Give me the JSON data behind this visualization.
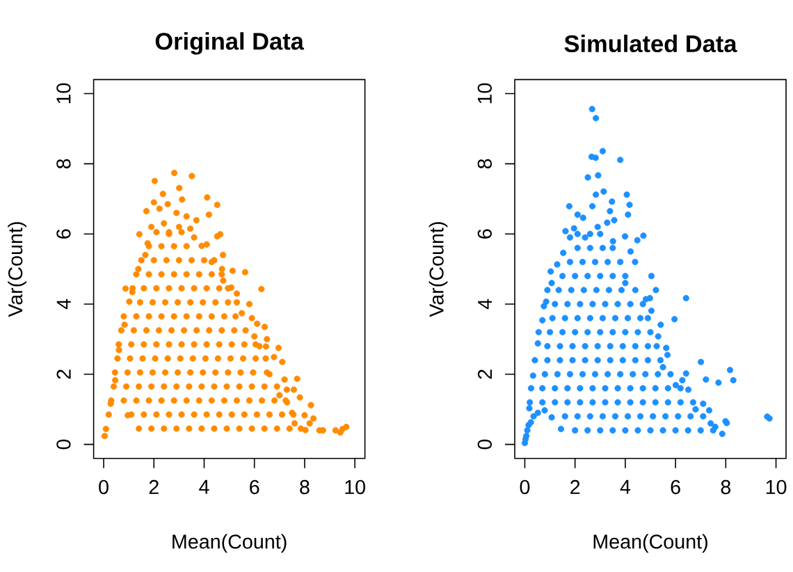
{
  "chart_data": [
    {
      "type": "scatter",
      "title": "Original Data",
      "xlabel": "Mean(Count)",
      "ylabel": "Var(Count)",
      "xlim": [
        -0.4,
        10.4
      ],
      "ylim": [
        -0.4,
        10.4
      ],
      "xticks": [
        0,
        2,
        4,
        6,
        8,
        10
      ],
      "yticks": [
        0,
        2,
        4,
        6,
        8,
        10
      ],
      "color": "#ff8c00",
      "marker": "circle",
      "x": [
        0.04,
        0.09,
        0.2,
        0.28,
        0.46,
        0.61,
        0.83,
        1.02,
        0.87,
        1.14,
        1.38,
        1.42,
        1.66,
        1.75,
        1.7,
        2.03,
        2.36,
        2.22,
        2.81,
        3.01,
        3.51,
        3.12,
        4.12,
        4.52,
        4.19,
        3.69,
        3.45,
        4.52,
        4.64,
        3.9,
        4.75,
        5.13,
        5.63,
        6.28,
        4.71,
        4.76,
        5.08,
        5.5,
        6.11,
        6.41,
        6.0,
        6.46,
        6.96,
        6.78,
        7.11,
        7.7,
        7.2,
        7.29,
        7.57,
        7.81,
        8.25,
        8.0,
        8.35,
        8.03,
        8.59,
        8.73,
        9.23,
        9.42,
        9.66,
        9.51,
        0.96,
        2.55,
        2.9,
        3.3,
        2.0,
        1.9,
        2.4,
        3.0,
        2.6,
        3.6,
        4.1,
        4.3,
        5.3,
        5.8,
        5.9,
        6.5,
        6.2,
        6.6,
        7.0,
        7.3,
        7.5,
        7.6,
        8.2,
        1.4,
        1.9,
        2.4,
        2.9,
        3.4,
        3.9,
        4.4,
        4.9,
        5.4,
        5.9,
        6.4,
        6.9,
        7.4,
        7.85,
        1.1,
        1.6,
        2.1,
        2.6,
        3.1,
        3.6,
        4.1,
        4.6,
        5.1,
        5.6,
        6.1,
        6.6,
        7.1,
        7.55,
        0.3,
        0.8,
        1.3,
        1.8,
        2.3,
        2.8,
        3.3,
        3.8,
        4.3,
        4.8,
        5.3,
        5.8,
        6.3,
        6.8,
        7.25,
        0.4,
        0.9,
        1.4,
        1.9,
        2.4,
        2.9,
        3.4,
        3.9,
        4.4,
        4.9,
        5.4,
        5.9,
        6.4,
        6.9,
        0.45,
        0.95,
        1.45,
        1.95,
        2.45,
        2.95,
        3.45,
        3.95,
        4.45,
        4.95,
        5.45,
        5.95,
        6.5,
        0.55,
        1.05,
        1.55,
        2.05,
        2.55,
        3.05,
        3.55,
        4.05,
        4.55,
        5.05,
        5.55,
        6.05,
        6.45,
        0.6,
        1.1,
        1.6,
        2.1,
        2.6,
        3.1,
        3.6,
        4.1,
        4.6,
        5.1,
        5.6,
        6.05,
        0.7,
        1.2,
        1.7,
        2.2,
        2.7,
        3.2,
        3.7,
        4.2,
        4.7,
        5.2,
        5.65,
        0.8,
        1.3,
        1.8,
        2.3,
        2.8,
        3.3,
        3.8,
        4.3,
        4.8,
        5.25,
        1.45,
        1.95,
        2.45,
        2.95,
        3.45,
        3.95,
        4.45,
        4.95,
        5.3,
        1.15,
        1.6,
        2.1,
        2.6,
        3.1,
        3.6,
        4.1,
        4.6,
        4.95,
        1.3,
        1.8,
        2.3,
        2.8,
        3.3,
        3.8,
        4.3,
        4.7,
        1.5,
        2.0,
        2.5,
        3.0,
        3.5,
        4.0,
        4.4,
        1.8,
        2.3,
        2.8,
        3.3,
        2.1,
        2.6,
        3.1
      ],
      "values": [
        0.24,
        0.44,
        0.85,
        1.16,
        1.83,
        2.69,
        3.41,
        4.07,
        4.44,
        4.34,
        5.0,
        5.99,
        5.4,
        5.73,
        6.65,
        7.51,
        7.14,
        6.72,
        7.74,
        7.31,
        7.65,
        6.98,
        7.04,
        6.83,
        6.55,
        6.39,
        6.15,
        5.93,
        5.99,
        5.66,
        5.4,
        4.95,
        4.91,
        4.43,
        5.0,
        4.67,
        4.47,
        3.74,
        3.44,
        3.35,
        3.08,
        2.79,
        2.75,
        2.49,
        2.35,
        1.87,
        1.85,
        1.56,
        1.56,
        1.34,
        1.12,
        0.83,
        0.74,
        0.41,
        0.4,
        0.4,
        0.4,
        0.34,
        0.5,
        0.44,
        0.83,
        6.85,
        6.6,
        6.5,
        6.9,
        6.2,
        6.3,
        6.2,
        6.0,
        5.9,
        5.7,
        5.2,
        4.3,
        4.0,
        3.6,
        3.0,
        2.8,
        2.0,
        1.4,
        1.2,
        0.9,
        0.6,
        0.6,
        0.45,
        0.45,
        0.45,
        0.45,
        0.45,
        0.45,
        0.45,
        0.45,
        0.45,
        0.45,
        0.45,
        0.45,
        0.45,
        0.45,
        0.85,
        0.85,
        0.85,
        0.85,
        0.85,
        0.85,
        0.85,
        0.85,
        0.85,
        0.85,
        0.85,
        0.85,
        0.85,
        0.85,
        1.25,
        1.25,
        1.25,
        1.25,
        1.25,
        1.25,
        1.25,
        1.25,
        1.25,
        1.25,
        1.25,
        1.25,
        1.25,
        1.25,
        1.25,
        1.65,
        1.65,
        1.65,
        1.65,
        1.65,
        1.65,
        1.65,
        1.65,
        1.65,
        1.65,
        1.65,
        1.65,
        1.65,
        1.65,
        2.05,
        2.05,
        2.05,
        2.05,
        2.05,
        2.05,
        2.05,
        2.05,
        2.05,
        2.05,
        2.05,
        2.05,
        2.05,
        2.45,
        2.45,
        2.45,
        2.45,
        2.45,
        2.45,
        2.45,
        2.45,
        2.45,
        2.45,
        2.45,
        2.45,
        2.45,
        2.85,
        2.85,
        2.85,
        2.85,
        2.85,
        2.85,
        2.85,
        2.85,
        2.85,
        2.85,
        2.85,
        2.85,
        3.25,
        3.25,
        3.25,
        3.25,
        3.25,
        3.25,
        3.25,
        3.25,
        3.25,
        3.25,
        3.25,
        3.65,
        3.65,
        3.65,
        3.65,
        3.65,
        3.65,
        3.65,
        3.65,
        3.65,
        3.65,
        4.05,
        4.05,
        4.05,
        4.05,
        4.05,
        4.05,
        4.05,
        4.05,
        4.05,
        4.45,
        4.45,
        4.45,
        4.45,
        4.45,
        4.45,
        4.45,
        4.45,
        4.45,
        4.85,
        4.85,
        4.85,
        4.85,
        4.85,
        4.85,
        4.85,
        4.85,
        5.25,
        5.25,
        5.25,
        5.25,
        5.25,
        5.25,
        5.25,
        5.65,
        5.65,
        5.65,
        5.65,
        6.05,
        6.05,
        6.05
      ]
    },
    {
      "type": "scatter",
      "title": "Simulated Data",
      "xlabel": "Mean(Count)",
      "ylabel": "Var(Count)",
      "xlim": [
        -0.4,
        10.4
      ],
      "ylim": [
        -0.4,
        10.4
      ],
      "xticks": [
        0,
        2,
        4,
        6,
        8,
        10
      ],
      "yticks": [
        0,
        2,
        4,
        6,
        8,
        10
      ],
      "color": "#1e90ff",
      "marker": "circle",
      "x": [
        0.0,
        0.06,
        0.24,
        0.52,
        0.79,
        1.07,
        1.44,
        0.18,
        0.33,
        0.52,
        0.7,
        0.76,
        0.85,
        1.07,
        1.03,
        1.29,
        1.53,
        1.62,
        1.77,
        1.96,
        2.1,
        2.32,
        2.51,
        2.66,
        2.82,
        3.1,
        3.8,
        2.68,
        2.83,
        2.92,
        2.83,
        2.69,
        3.14,
        3.39,
        3.47,
        4.06,
        4.17,
        4.11,
        3.56,
        3.28,
        3.99,
        4.48,
        4.72,
        3.51,
        4.21,
        4.39,
        5.04,
        5.22,
        4.98,
        4.82,
        5.04,
        6.42,
        5.96,
        5.41,
        5.31,
        5.63,
        5.68,
        7.01,
        8.17,
        8.3,
        7.21,
        7.71,
        6.42,
        6.27,
        6.51,
        6.01,
        7.1,
        7.34,
        7.99,
        8.04,
        7.86,
        9.65,
        9.74,
        7.58,
        0.03,
        0.1,
        0.15,
        0.35,
        1.8,
        2.4,
        2.9,
        4.0,
        5.5,
        6.8,
        7.4,
        2.0,
        2.5,
        3.0,
        3.5,
        4.0,
        4.5,
        5.0,
        5.5,
        6.0,
        6.5,
        7.0,
        7.5,
        1.6,
        2.1,
        2.6,
        3.1,
        3.6,
        4.1,
        4.6,
        5.1,
        5.6,
        6.1,
        6.6,
        7.1,
        0.2,
        0.7,
        1.2,
        1.7,
        2.2,
        2.7,
        3.2,
        3.7,
        4.2,
        4.7,
        5.2,
        5.7,
        6.2,
        6.7,
        0.25,
        0.7,
        1.2,
        1.7,
        2.2,
        2.7,
        3.2,
        3.7,
        4.2,
        4.7,
        5.2,
        5.7,
        6.2,
        0.8,
        1.3,
        1.8,
        2.3,
        2.8,
        3.3,
        3.8,
        4.3,
        4.8,
        5.3,
        5.8,
        0.4,
        0.9,
        1.4,
        1.9,
        2.4,
        2.9,
        3.4,
        3.9,
        4.4,
        4.9,
        5.4,
        0.9,
        1.4,
        1.9,
        2.4,
        2.9,
        3.4,
        3.9,
        4.4,
        4.9,
        5.25,
        0.55,
        1.0,
        1.5,
        2.0,
        2.5,
        3.0,
        3.5,
        4.0,
        4.5,
        5.0,
        1.1,
        1.6,
        2.1,
        2.6,
        3.1,
        3.6,
        4.1,
        4.6,
        4.9,
        1.2,
        1.7,
        2.2,
        2.7,
        3.2,
        3.7,
        4.2,
        4.7,
        0.9,
        1.35,
        1.85,
        2.35,
        2.85,
        3.35,
        3.85,
        4.4,
        1.5,
        2.0,
        2.5,
        3.0,
        3.5,
        4.0,
        1.8,
        2.3,
        2.8,
        3.3,
        3.8,
        2.1,
        2.6,
        3.1,
        3.5,
        2.1,
        2.6,
        3.0
      ],
      "values": [
        0.04,
        0.24,
        0.63,
        0.9,
        0.97,
        0.77,
        0.44,
        1.03,
        1.96,
        2.88,
        3.54,
        3.94,
        4.07,
        4.6,
        4.93,
        5.13,
        5.46,
        6.08,
        6.79,
        6.16,
        6.55,
        6.46,
        7.61,
        8.2,
        8.17,
        8.36,
        8.11,
        9.56,
        9.3,
        7.67,
        7.12,
        6.79,
        7.21,
        6.65,
        6.92,
        7.12,
        6.83,
        6.55,
        6.39,
        6.32,
        5.93,
        5.82,
        5.95,
        5.79,
        5.5,
        5.2,
        4.8,
        4.4,
        4.17,
        4.14,
        3.81,
        4.17,
        3.57,
        3.41,
        3.08,
        2.75,
        2.55,
        2.35,
        2.12,
        1.83,
        1.85,
        1.76,
        2.02,
        1.83,
        1.56,
        1.69,
        1.16,
        0.97,
        0.66,
        0.61,
        0.3,
        0.79,
        0.74,
        0.5,
        0.15,
        0.4,
        0.55,
        0.8,
        5.9,
        5.9,
        6.2,
        4.6,
        2.2,
        1.0,
        0.6,
        0.4,
        0.4,
        0.4,
        0.4,
        0.4,
        0.4,
        0.4,
        0.4,
        0.4,
        0.4,
        0.4,
        0.4,
        0.8,
        0.8,
        0.8,
        0.8,
        0.8,
        0.8,
        0.8,
        0.8,
        0.8,
        0.8,
        0.8,
        0.8,
        1.2,
        1.2,
        1.2,
        1.2,
        1.2,
        1.2,
        1.2,
        1.2,
        1.2,
        1.2,
        1.2,
        1.2,
        1.2,
        1.2,
        1.6,
        1.6,
        1.6,
        1.6,
        1.6,
        1.6,
        1.6,
        1.6,
        1.6,
        1.6,
        1.6,
        1.6,
        1.6,
        2.0,
        2.0,
        2.0,
        2.0,
        2.0,
        2.0,
        2.0,
        2.0,
        2.0,
        2.0,
        2.0,
        2.4,
        2.4,
        2.4,
        2.4,
        2.4,
        2.4,
        2.4,
        2.4,
        2.4,
        2.4,
        2.4,
        2.8,
        2.8,
        2.8,
        2.8,
        2.8,
        2.8,
        2.8,
        2.8,
        2.8,
        2.8,
        3.2,
        3.2,
        3.2,
        3.2,
        3.2,
        3.2,
        3.2,
        3.2,
        3.2,
        3.2,
        3.6,
        3.6,
        3.6,
        3.6,
        3.6,
        3.6,
        3.6,
        3.6,
        3.6,
        4.0,
        4.0,
        4.0,
        4.0,
        4.0,
        4.0,
        4.0,
        4.0,
        4.4,
        4.4,
        4.4,
        4.4,
        4.4,
        4.4,
        4.4,
        4.4,
        4.8,
        4.8,
        4.8,
        4.8,
        4.8,
        4.8,
        5.2,
        5.2,
        5.2,
        5.2,
        5.2,
        5.6,
        5.6,
        5.6,
        5.6,
        6.0,
        6.0,
        6.0
      ]
    }
  ]
}
